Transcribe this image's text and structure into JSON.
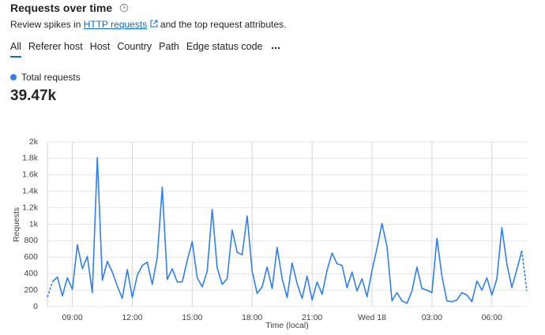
{
  "header": {
    "title": "Requests over time",
    "subtitle_before": "Review spikes in",
    "link": "HTTP requests",
    "subtitle_after": "and the top request attributes."
  },
  "tabs": [
    "All",
    "Referer host",
    "Host",
    "Country",
    "Path",
    "Edge status code"
  ],
  "summary_value": "39.47k",
  "chart_data": {
    "type": "line",
    "x_label": "Time (local)",
    "y_label": "Requests",
    "x": [
      7.75,
      8,
      8.25,
      8.5,
      8.75,
      9,
      9.25,
      9.5,
      9.75,
      10,
      10.25,
      10.5,
      10.75,
      11,
      11.25,
      11.5,
      11.75,
      12,
      12.25,
      12.5,
      12.75,
      13,
      13.25,
      13.5,
      13.75,
      14,
      14.25,
      14.5,
      14.75,
      15,
      15.25,
      15.5,
      15.75,
      16,
      16.25,
      16.5,
      16.75,
      17,
      17.25,
      17.5,
      17.75,
      18,
      18.25,
      18.5,
      18.75,
      19,
      19.25,
      19.5,
      19.75,
      20,
      20.25,
      20.5,
      20.75,
      21,
      21.25,
      21.5,
      21.75,
      22,
      22.25,
      22.5,
      22.75,
      23,
      23.25,
      23.5,
      23.75,
      24,
      24.25,
      24.5,
      24.75,
      25,
      25.25,
      25.5,
      25.75,
      26,
      26.25,
      26.5,
      26.75,
      27,
      27.25,
      27.5,
      27.75,
      28,
      28.25,
      28.5,
      28.75,
      29,
      29.25,
      29.5,
      29.75,
      30,
      30.25,
      30.5,
      30.75,
      31,
      31.25,
      31.5,
      31.75
    ],
    "series": [
      {
        "name": "Total requests",
        "color": "#2f80ed",
        "values": [
          115,
          300,
          360,
          130,
          350,
          210,
          750,
          460,
          610,
          170,
          1810,
          320,
          550,
          420,
          250,
          100,
          450,
          110,
          380,
          500,
          540,
          270,
          600,
          1450,
          330,
          460,
          300,
          300,
          560,
          790,
          350,
          240,
          430,
          1180,
          470,
          270,
          340,
          930,
          660,
          630,
          1100,
          430,
          160,
          240,
          480,
          220,
          720,
          340,
          110,
          530,
          280,
          100,
          370,
          80,
          300,
          150,
          440,
          650,
          520,
          500,
          230,
          420,
          190,
          340,
          120,
          440,
          710,
          1010,
          730,
          70,
          170,
          70,
          40,
          190,
          480,
          220,
          200,
          170,
          830,
          370,
          70,
          60,
          80,
          170,
          140,
          60,
          310,
          200,
          350,
          140,
          340,
          960,
          520,
          230,
          450,
          680,
          190
        ]
      }
    ],
    "dashed_ends": true,
    "xlim": [
      7.75,
      31.75
    ],
    "xticks": [
      {
        "value": 9,
        "label": "09:00"
      },
      {
        "value": 12,
        "label": "12:00"
      },
      {
        "value": 15,
        "label": "15:00"
      },
      {
        "value": 18,
        "label": "18:00"
      },
      {
        "value": 21,
        "label": "21:00"
      },
      {
        "value": 24,
        "label": "Wed 18"
      },
      {
        "value": 27,
        "label": "03:00"
      },
      {
        "value": 30,
        "label": "06:00"
      }
    ],
    "ylim": [
      0,
      2000
    ],
    "yticks": [
      0,
      200,
      400,
      600,
      800,
      {
        "value": 1000,
        "label": "1k"
      },
      {
        "value": 1200,
        "label": "1.2k"
      },
      {
        "value": 1400,
        "label": "1.4k"
      },
      {
        "value": 1600,
        "label": "1.6k"
      },
      {
        "value": 1800,
        "label": "1.8k"
      },
      {
        "value": 2000,
        "label": "2k"
      }
    ],
    "grid": true
  }
}
